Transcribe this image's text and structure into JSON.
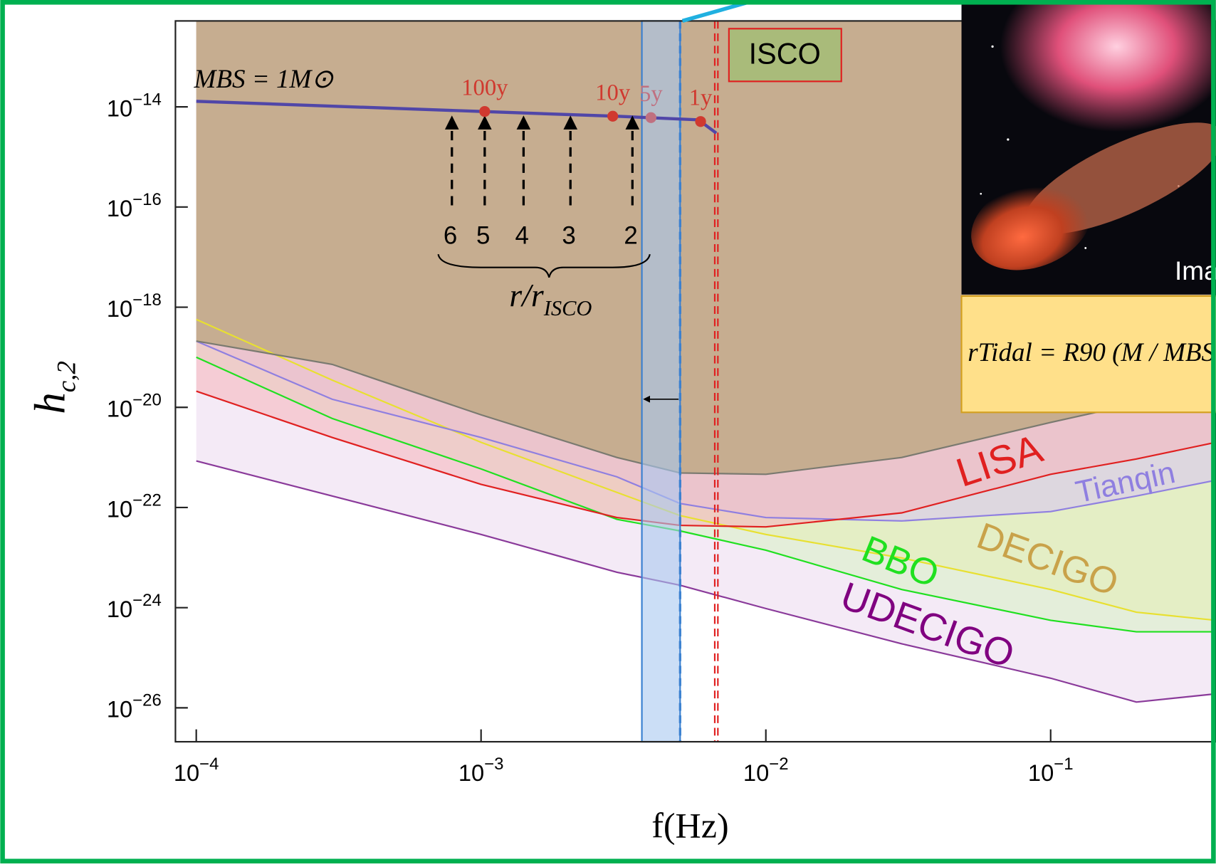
{
  "chart_data": {
    "type": "line",
    "xlabel": "f(Hz)",
    "ylabel": "hc,2",
    "xscale": "log",
    "yscale": "log",
    "xlim": [
      8.45e-05,
      0.38
    ],
    "ylim": [
      2.1e-27,
      5.2e-13
    ],
    "xticks": [
      {
        "value": 0.0001,
        "label": "10−4"
      },
      {
        "value": 0.001,
        "label": "10−3"
      },
      {
        "value": 0.01,
        "label": "10−2"
      },
      {
        "value": 0.1,
        "label": "10−1"
      }
    ],
    "yticks": [
      {
        "value": 1e-14,
        "label": "10−14"
      },
      {
        "value": 1e-16,
        "label": "10−16"
      },
      {
        "value": 1e-18,
        "label": "10−18"
      },
      {
        "value": 1e-20,
        "label": "10−20"
      },
      {
        "value": 1e-22,
        "label": "10−22"
      },
      {
        "value": 1e-24,
        "label": "10−24"
      },
      {
        "value": 1e-26,
        "label": "10−26"
      }
    ],
    "x": [
      0.0001,
      0.0003,
      0.001,
      0.003,
      0.005,
      0.01,
      0.03,
      0.1,
      0.2,
      0.38
    ],
    "series": [
      {
        "color": "#7a7a70",
        "fill": "#c2ab8a",
        "values": [
          2.1e-19,
          7.2e-20,
          7.1e-21,
          1e-21,
          4.9e-22,
          4.6e-22,
          1e-21,
          5e-21,
          1.2e-20,
          2.5e-20
        ]
      },
      {
        "name": "LISA",
        "color": "#e02020",
        "fill": "#f5b8c0",
        "values": [
          2.1e-20,
          2.5e-21,
          2.9e-22,
          6.3e-23,
          4.4e-23,
          4.1e-23,
          7.8e-23,
          4.6e-22,
          9.3e-22,
          2e-21
        ]
      },
      {
        "name": "Tianqin",
        "color": "#8f7fe0",
        "fill": "#d8c8f0",
        "values": [
          2.1e-19,
          1.45e-20,
          2.5e-21,
          4.1e-22,
          1.2e-22,
          6.3e-23,
          5.4e-23,
          8.3e-23,
          1.7e-22,
          3.5e-22
        ]
      },
      {
        "name": "DECIGO",
        "color": "#e8e030",
        "label_color": "#c9a24a",
        "fill": "#e4eeb8",
        "values": [
          5.7e-19,
          3.5e-20,
          2e-21,
          2e-22,
          6.9e-23,
          2.9e-23,
          9.8e-24,
          2.3e-24,
          8.1e-25,
          5.6e-25
        ]
      },
      {
        "name": "BBO",
        "color": "#20e020",
        "fill": "#d8f0c8",
        "values": [
          1e-19,
          6e-21,
          5.9e-22,
          5.8e-23,
          3.4e-23,
          1.4e-23,
          2.3e-24,
          5.6e-25,
          3.3e-25,
          3.3e-25
        ]
      },
      {
        "name": "UDECIGO",
        "color": "#8a3a9a",
        "label_color": "#800080",
        "fill": "#ecdcf0",
        "values": [
          8.5e-22,
          1.7e-22,
          2.9e-23,
          5.1e-24,
          2.8e-24,
          9.6e-25,
          1.9e-25,
          3.9e-26,
          1.3e-26,
          1.9e-26
        ]
      }
    ],
    "source_curve": {
      "label": "MBS = 1M⊙",
      "color": "#5046a8",
      "x": [
        0.0001,
        0.001,
        0.003,
        0.0058,
        0.0067
      ],
      "values": [
        1.29e-14,
        8.1e-15,
        6.5e-15,
        5.5e-15,
        3e-15
      ]
    },
    "time_markers": [
      {
        "label": "100y",
        "x": 0.00103,
        "y": 8.1e-15,
        "color": "#d0392f"
      },
      {
        "label": "10y",
        "x": 0.0029,
        "y": 6.5e-15,
        "color": "#d0392f"
      },
      {
        "label": "5y",
        "x": 0.00395,
        "y": 6.1e-15,
        "color": "#c07080"
      },
      {
        "label": "1y",
        "x": 0.0059,
        "y": 5.1e-15,
        "color": "#d0392f"
      }
    ],
    "radius_markers": {
      "label": "r/rISCO",
      "points": [
        {
          "label": "6",
          "x": 0.00079
        },
        {
          "label": "5",
          "x": 0.00103
        },
        {
          "label": "4",
          "x": 0.00141
        },
        {
          "label": "3",
          "x": 0.00206
        },
        {
          "label": "2",
          "x": 0.0034
        }
      ]
    },
    "isco": {
      "label": "ISCO",
      "x": 0.0067,
      "color": "#e02020"
    },
    "band": {
      "x": [
        0.00367,
        0.005
      ],
      "color": "#3a80d0"
    },
    "inset": {
      "caption": "Ima",
      "formula": "rTidal = R90 (M / MBS"
    }
  }
}
